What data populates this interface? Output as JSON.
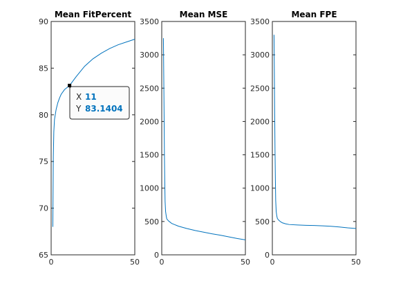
{
  "colors": {
    "series": "#0072bd",
    "tooltip_value": "#0072bd"
  },
  "datatip": {
    "x_label": "X",
    "y_label": "Y",
    "x_value": "11",
    "y_value": "83.1404",
    "x": 11,
    "y": 83.1404
  },
  "chart_data": [
    {
      "type": "line",
      "title": "Mean FitPercent",
      "xlim": [
        0,
        50
      ],
      "ylim": [
        65,
        90
      ],
      "xticks": [
        0,
        50
      ],
      "yticks": [
        65,
        70,
        75,
        80,
        85,
        90
      ],
      "xtick_labels": [
        "0",
        "50"
      ],
      "ytick_labels": [
        "65",
        "70",
        "75",
        "80",
        "85",
        "90"
      ],
      "series": [
        {
          "x": [
            1,
            1.3,
            1.6,
            2,
            3,
            4,
            5,
            6,
            8,
            11,
            15,
            20,
            25,
            30,
            35,
            40,
            45,
            50
          ],
          "y": [
            68,
            75.5,
            78.2,
            79.5,
            80.6,
            81.3,
            81.8,
            82.2,
            82.7,
            83.14,
            84.1,
            85.2,
            86.0,
            86.6,
            87.1,
            87.5,
            87.8,
            88.1
          ]
        }
      ]
    },
    {
      "type": "line",
      "title": "Mean MSE",
      "xlim": [
        0,
        50
      ],
      "ylim": [
        0,
        3500
      ],
      "xticks": [
        0,
        50
      ],
      "yticks": [
        0,
        500,
        1000,
        1500,
        2000,
        2500,
        3000,
        3500
      ],
      "xtick_labels": [
        "0",
        "50"
      ],
      "ytick_labels": [
        "0",
        "500",
        "1000",
        "1500",
        "2000",
        "2500",
        "3000",
        "3500"
      ],
      "series": [
        {
          "x": [
            1,
            1.2,
            1.4,
            1.6,
            1.8,
            2,
            2.3,
            2.7,
            3,
            4,
            5,
            6,
            8,
            10,
            15,
            20,
            25,
            30,
            35,
            40,
            45,
            50
          ],
          "y": [
            3250,
            2700,
            2100,
            1500,
            1100,
            800,
            650,
            580,
            540,
            510,
            490,
            470,
            450,
            430,
            395,
            365,
            340,
            315,
            295,
            270,
            245,
            225
          ]
        }
      ]
    },
    {
      "type": "line",
      "title": "Mean FPE",
      "xlim": [
        0,
        50
      ],
      "ylim": [
        0,
        3500
      ],
      "xticks": [
        0,
        50
      ],
      "yticks": [
        0,
        500,
        1000,
        1500,
        2000,
        2500,
        3000,
        3500
      ],
      "xtick_labels": [
        "0",
        "50"
      ],
      "ytick_labels": [
        "0",
        "500",
        "1000",
        "1500",
        "2000",
        "2500",
        "3000",
        "3500"
      ],
      "series": [
        {
          "x": [
            1,
            1.2,
            1.4,
            1.6,
            1.8,
            2,
            2.3,
            2.7,
            3,
            4,
            5,
            6,
            8,
            10,
            15,
            20,
            25,
            30,
            35,
            40,
            45,
            50
          ],
          "y": [
            3300,
            2750,
            2100,
            1550,
            1150,
            820,
            650,
            580,
            545,
            515,
            495,
            480,
            465,
            455,
            448,
            443,
            440,
            435,
            428,
            418,
            405,
            395
          ]
        }
      ]
    }
  ]
}
